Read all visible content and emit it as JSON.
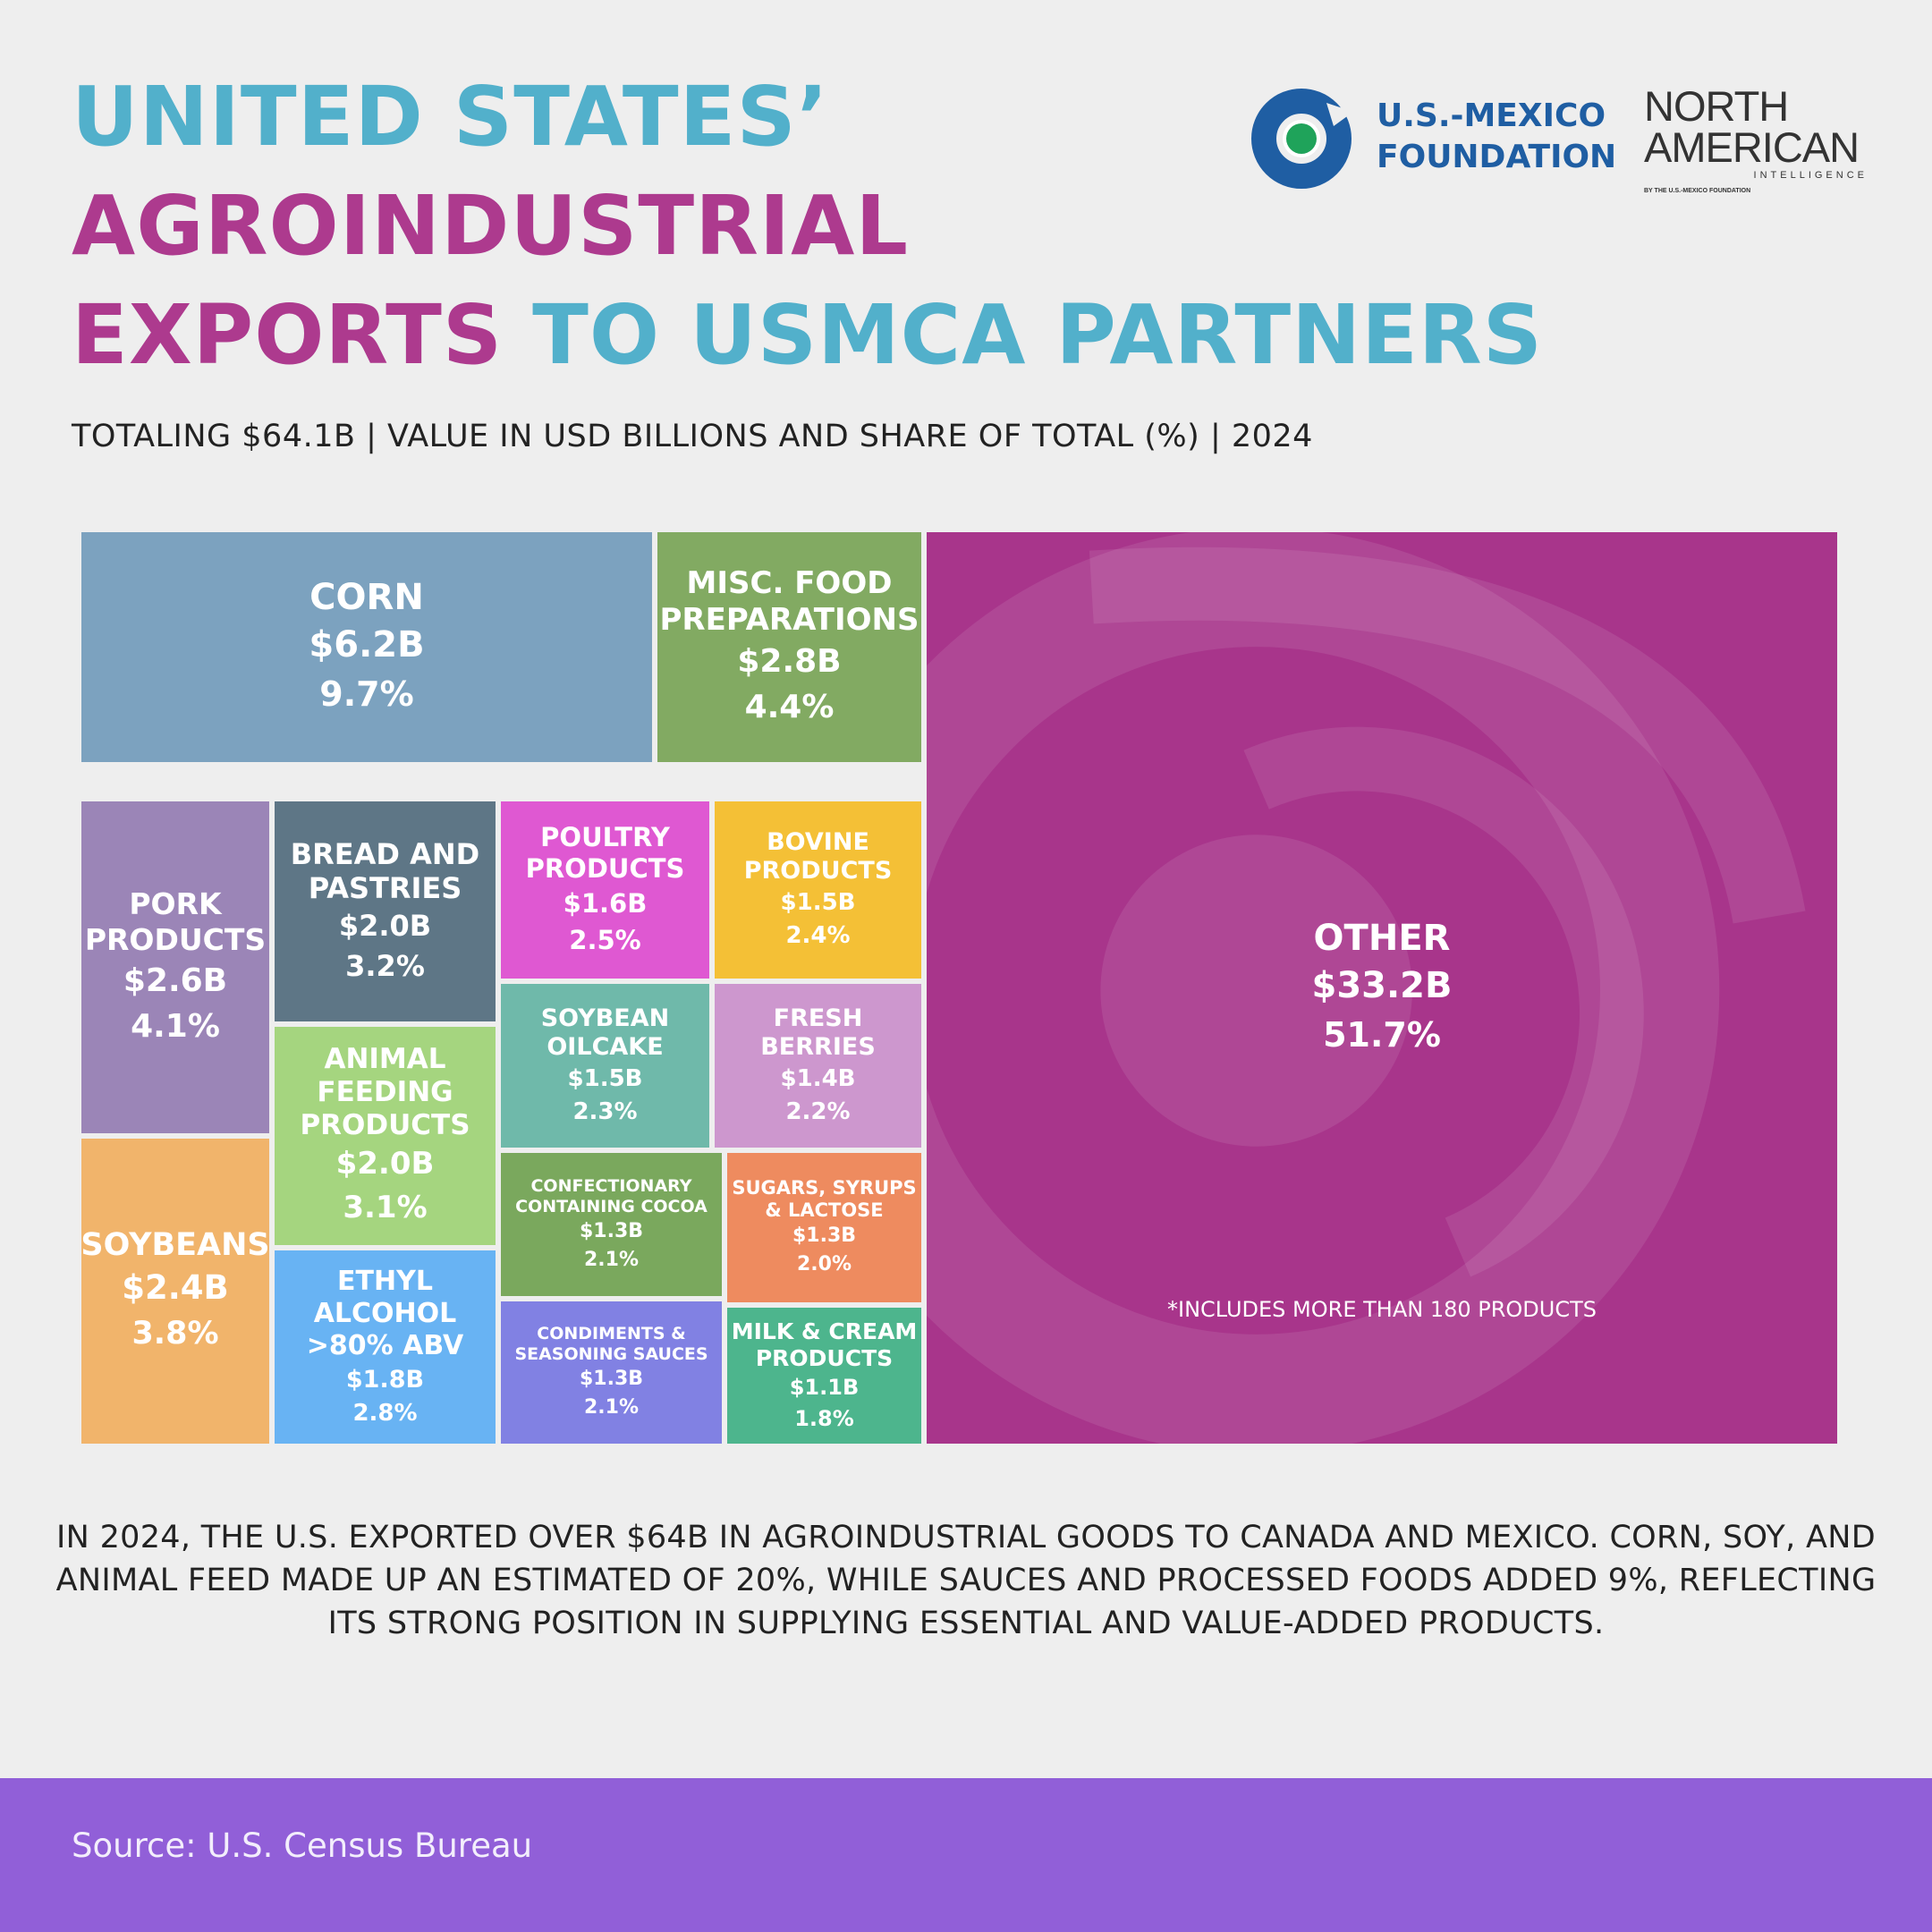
{
  "title": {
    "line1": "UNITED STATES’",
    "line2": "AGROINDUSTRIAL",
    "line3_a": "EXPORTS",
    "line3_b": " TO USMCA PARTNERS"
  },
  "subtitle": "TOTALING $64.1B | VALUE IN USD BILLIONS AND SHARE OF TOTAL (%) | 2024",
  "logos": {
    "usmf_line1": "U.S.-MEXICO",
    "usmf_line2": "FOUNDATION",
    "na_line1": "NORTH",
    "na_line2": "AMERICAN",
    "na_line3": "INTELLIGENCE",
    "na_line4": "BY THE U.S.-MEXICO FOUNDATION"
  },
  "chart_data": {
    "type": "treemap",
    "title": "UNITED STATES’ AGROINDUSTRIAL EXPORTS TO USMCA PARTNERS",
    "unit": "USD billions",
    "total": "$64.1B",
    "items": [
      {
        "id": "corn",
        "label": "CORN",
        "value": 6.2,
        "value_label": "$6.2B",
        "share": "9.7%",
        "color": "#7ca2bf"
      },
      {
        "id": "misc",
        "label": "MISC. FOOD PREPARATIONS",
        "value": 2.8,
        "value_label": "$2.8B",
        "share": "4.4%",
        "color": "#82aa62"
      },
      {
        "id": "other",
        "label": "OTHER",
        "value": 33.2,
        "value_label": "$33.2B",
        "share": "51.7%",
        "color": "#a8358b",
        "note": "*INCLUDES MORE THAN 180 PRODUCTS"
      },
      {
        "id": "pork",
        "label": "PORK PRODUCTS",
        "value": 2.6,
        "value_label": "$2.6B",
        "share": "4.1%",
        "color": "#9b85b7"
      },
      {
        "id": "bread",
        "label": "BREAD AND PASTRIES",
        "value": 2.0,
        "value_label": "$2.0B",
        "share": "3.2%",
        "color": "#5e7686"
      },
      {
        "id": "poultry",
        "label": "POULTRY PRODUCTS",
        "value": 1.6,
        "value_label": "$1.6B",
        "share": "2.5%",
        "color": "#df58d2"
      },
      {
        "id": "bovine",
        "label": "BOVINE PRODUCTS",
        "value": 1.5,
        "value_label": "$1.5B",
        "share": "2.4%",
        "color": "#f4c036"
      },
      {
        "id": "animal",
        "label": "ANIMAL FEEDING PRODUCTS",
        "value": 2.0,
        "value_label": "$2.0B",
        "share": "3.1%",
        "color": "#a5d57f"
      },
      {
        "id": "soyoil",
        "label": "SOYBEAN OILCAKE",
        "value": 1.5,
        "value_label": "$1.5B",
        "share": "2.3%",
        "color": "#6fb9aa"
      },
      {
        "id": "berries",
        "label": "FRESH BERRIES",
        "value": 1.4,
        "value_label": "$1.4B",
        "share": "2.2%",
        "color": "#cd97ce"
      },
      {
        "id": "soybeans",
        "label": "SOYBEANS",
        "value": 2.4,
        "value_label": "$2.4B",
        "share": "3.8%",
        "color": "#f1b46b"
      },
      {
        "id": "confect",
        "label": "CONFECTIONARY CONTAINING COCOA",
        "value": 1.3,
        "value_label": "$1.3B",
        "share": "2.1%",
        "color": "#7aa85d"
      },
      {
        "id": "sugars",
        "label": "SUGARS, SYRUPS & LACTOSE",
        "value": 1.3,
        "value_label": "$1.3B",
        "share": "2.0%",
        "color": "#ee8b5f"
      },
      {
        "id": "ethyl",
        "label": "ETHYL ALCOHOL >80% ABV",
        "value": 1.8,
        "value_label": "$1.8B",
        "share": "2.8%",
        "color": "#68b3f3"
      },
      {
        "id": "condiments",
        "label": "CONDIMENTS & SEASONING SAUCES",
        "value": 1.3,
        "value_label": "$1.3B",
        "share": "2.1%",
        "color": "#8181e3"
      },
      {
        "id": "milk",
        "label": "MILK & CREAM PRODUCTS",
        "value": 1.1,
        "value_label": "$1.1B",
        "share": "1.8%",
        "color": "#4db58d"
      }
    ]
  },
  "body": "IN 2024, THE U.S. EXPORTED OVER $64B IN AGROINDUSTRIAL GOODS TO CANADA AND MEXICO. CORN, SOY, AND ANIMAL FEED MADE UP AN ESTIMATED OF 20%, WHILE SAUCES AND PROCESSED FOODS ADDED 9%, REFLECTING ITS STRONG POSITION IN SUPPLYING ESSENTIAL AND VALUE-ADDED PRODUCTS.",
  "source": "Source: U.S. Census Bureau"
}
